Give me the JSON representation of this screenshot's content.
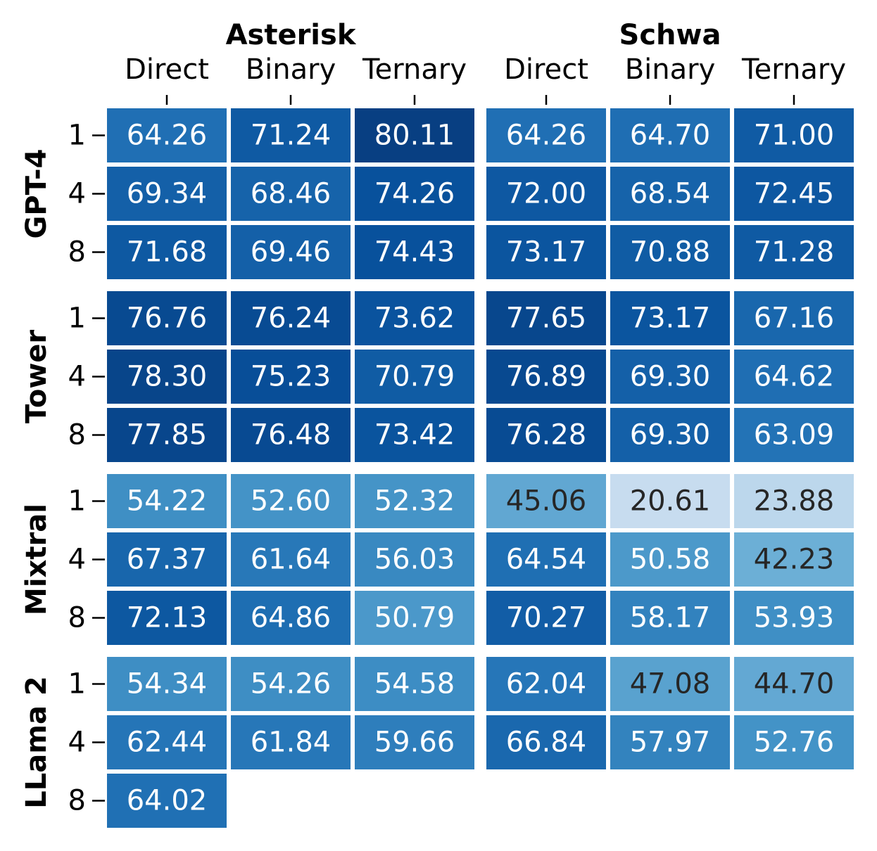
{
  "chart_data": {
    "type": "heatmap",
    "colormap": "Blues",
    "vmin": 0,
    "vmax": 85,
    "column_groups": [
      {
        "name": "Asterisk",
        "columns": [
          "Direct",
          "Binary",
          "Ternary"
        ]
      },
      {
        "name": "Schwa",
        "columns": [
          "Direct",
          "Binary",
          "Ternary"
        ]
      }
    ],
    "row_groups": [
      {
        "name": "GPT-4",
        "rows": [
          "1",
          "4",
          "8"
        ]
      },
      {
        "name": "Tower",
        "rows": [
          "1",
          "4",
          "8"
        ]
      },
      {
        "name": "Mixtral",
        "rows": [
          "1",
          "4",
          "8"
        ]
      },
      {
        "name": "LLama 2",
        "rows": [
          "1",
          "4",
          "8"
        ]
      }
    ],
    "values": [
      [
        [
          64.26,
          71.24,
          80.11,
          64.26,
          64.7,
          71.0
        ],
        [
          69.34,
          68.46,
          74.26,
          72.0,
          68.54,
          72.45
        ],
        [
          71.68,
          69.46,
          74.43,
          73.17,
          70.88,
          71.28
        ]
      ],
      [
        [
          76.76,
          76.24,
          73.62,
          77.65,
          73.17,
          67.16
        ],
        [
          78.3,
          75.23,
          70.79,
          76.89,
          69.3,
          64.62
        ],
        [
          77.85,
          76.48,
          73.42,
          76.28,
          69.3,
          63.09
        ]
      ],
      [
        [
          54.22,
          52.6,
          52.32,
          45.06,
          20.61,
          23.88
        ],
        [
          67.37,
          61.64,
          56.03,
          64.54,
          50.58,
          42.23
        ],
        [
          72.13,
          64.86,
          50.79,
          70.27,
          58.17,
          53.93
        ]
      ],
      [
        [
          54.34,
          54.26,
          54.58,
          62.04,
          47.08,
          44.7
        ],
        [
          62.44,
          61.84,
          59.66,
          66.84,
          57.97,
          52.76
        ],
        [
          64.02,
          null,
          null,
          null,
          null,
          null
        ]
      ]
    ],
    "value_labels": [
      [
        [
          "64.26",
          "71.24",
          "80.11",
          "64.26",
          "64.70",
          "71.00"
        ],
        [
          "69.34",
          "68.46",
          "74.26",
          "72.00",
          "68.54",
          "72.45"
        ],
        [
          "71.68",
          "69.46",
          "74.43",
          "73.17",
          "70.88",
          "71.28"
        ]
      ],
      [
        [
          "76.76",
          "76.24",
          "73.62",
          "77.65",
          "73.17",
          "67.16"
        ],
        [
          "78.30",
          "75.23",
          "70.79",
          "76.89",
          "69.30",
          "64.62"
        ],
        [
          "77.85",
          "76.48",
          "73.42",
          "76.28",
          "69.30",
          "63.09"
        ]
      ],
      [
        [
          "54.22",
          "52.60",
          "52.32",
          "45.06",
          "20.61",
          "23.88"
        ],
        [
          "67.37",
          "61.64",
          "56.03",
          "64.54",
          "50.58",
          "42.23"
        ],
        [
          "72.13",
          "64.86",
          "50.79",
          "70.27",
          "58.17",
          "53.93"
        ]
      ],
      [
        [
          "54.34",
          "54.26",
          "54.58",
          "62.04",
          "47.08",
          "44.70"
        ],
        [
          "62.44",
          "61.84",
          "59.66",
          "66.84",
          "57.97",
          "52.76"
        ],
        [
          "64.02",
          null,
          null,
          null,
          null,
          null
        ]
      ]
    ],
    "text_color_dark": "#262626",
    "text_color_light": "#ffffff",
    "grid": false,
    "legend": "none"
  }
}
